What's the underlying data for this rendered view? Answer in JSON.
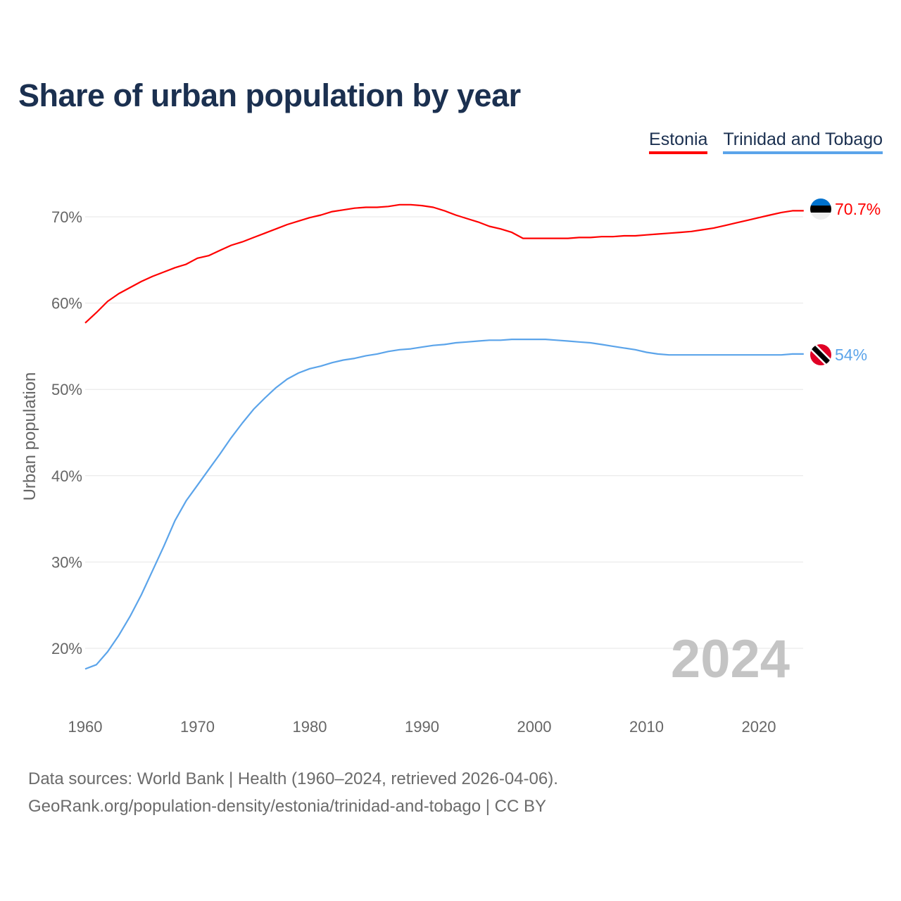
{
  "chart_data": {
    "type": "line",
    "title": "Share of urban population by year",
    "xlabel": "",
    "ylabel": "Urban population",
    "xlim": [
      1960,
      2024
    ],
    "ylim": [
      15,
      73
    ],
    "yticks": [
      20,
      30,
      40,
      50,
      60,
      70
    ],
    "ytick_labels": [
      "20%",
      "30%",
      "40%",
      "50%",
      "60%",
      "70%"
    ],
    "xticks": [
      1960,
      1970,
      1980,
      1990,
      2000,
      2010,
      2020
    ],
    "xtick_labels": [
      "1960",
      "1970",
      "1980",
      "1990",
      "2000",
      "2010",
      "2020"
    ],
    "grid": true,
    "legend_position": "top-right",
    "year_watermark": "2024",
    "x": [
      1960,
      1961,
      1962,
      1963,
      1964,
      1965,
      1966,
      1967,
      1968,
      1969,
      1970,
      1971,
      1972,
      1973,
      1974,
      1975,
      1976,
      1977,
      1978,
      1979,
      1980,
      1981,
      1982,
      1983,
      1984,
      1985,
      1986,
      1987,
      1988,
      1989,
      1990,
      1991,
      1992,
      1993,
      1994,
      1995,
      1996,
      1997,
      1998,
      1999,
      2000,
      2001,
      2002,
      2003,
      2004,
      2005,
      2006,
      2007,
      2008,
      2009,
      2010,
      2011,
      2012,
      2013,
      2014,
      2015,
      2016,
      2017,
      2018,
      2019,
      2020,
      2021,
      2022,
      2023,
      2024
    ],
    "series": [
      {
        "name": "Estonia",
        "color": "#ff0000",
        "end_label": "70.7%",
        "flag": "estonia-flag",
        "values": [
          57.7,
          58.9,
          60.2,
          61.1,
          61.8,
          62.5,
          63.1,
          63.6,
          64.1,
          64.5,
          65.2,
          65.5,
          66.1,
          66.7,
          67.1,
          67.6,
          68.1,
          68.6,
          69.1,
          69.5,
          69.9,
          70.2,
          70.6,
          70.8,
          71.0,
          71.1,
          71.1,
          71.2,
          71.4,
          71.4,
          71.3,
          71.1,
          70.7,
          70.2,
          69.8,
          69.4,
          68.9,
          68.6,
          68.2,
          67.5,
          67.5,
          67.5,
          67.5,
          67.5,
          67.6,
          67.6,
          67.7,
          67.7,
          67.8,
          67.8,
          67.9,
          68.0,
          68.1,
          68.2,
          68.3,
          68.5,
          68.7,
          69.0,
          69.3,
          69.6,
          69.9,
          70.2,
          70.5,
          70.7,
          70.7
        ]
      },
      {
        "name": "Trinidad and Tobago",
        "color": "#5ba4ea",
        "end_label": "54%",
        "flag": "trinidad-and-tobago-flag",
        "values": [
          17.6,
          18.1,
          19.6,
          21.5,
          23.7,
          26.2,
          29.0,
          31.8,
          34.8,
          37.1,
          38.9,
          40.7,
          42.5,
          44.4,
          46.1,
          47.7,
          49.0,
          50.2,
          51.2,
          51.9,
          52.4,
          52.7,
          53.1,
          53.4,
          53.6,
          53.9,
          54.1,
          54.4,
          54.6,
          54.7,
          54.9,
          55.1,
          55.2,
          55.4,
          55.5,
          55.6,
          55.7,
          55.7,
          55.8,
          55.8,
          55.8,
          55.8,
          55.7,
          55.6,
          55.5,
          55.4,
          55.2,
          55.0,
          54.8,
          54.6,
          54.3,
          54.1,
          54.0,
          54.0,
          54.0,
          54.0,
          54.0,
          54.0,
          54.0,
          54.0,
          54.0,
          54.0,
          54.0,
          54.1,
          54.1
        ]
      }
    ]
  },
  "footer": {
    "line1": "Data sources: World Bank | Health (1960–2024, retrieved 2026-04-06).",
    "line2": "GeoRank.org/population-density/estonia/trinidad-and-tobago | CC BY"
  }
}
